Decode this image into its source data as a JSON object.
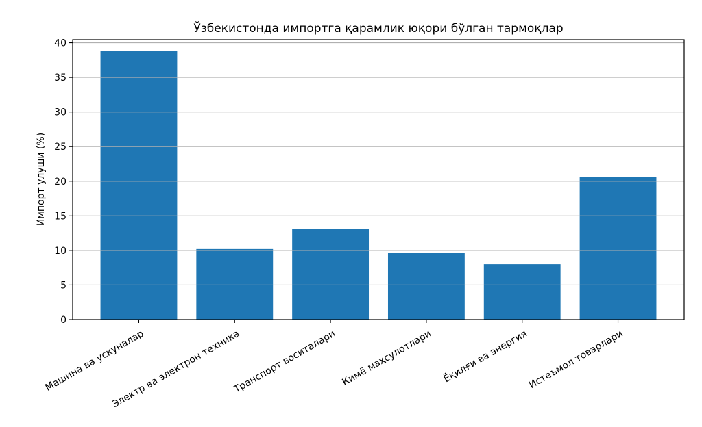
{
  "chart_data": {
    "type": "bar",
    "title": "Ўзбекистонда импортга қарамлик юқори бўлган тармоқлар",
    "xlabel": "",
    "ylabel": "Импорт улуши (%)",
    "categories": [
      "Машина ва ускуналар",
      "Электр ва электрон техника",
      "Транспорт воситалари",
      "Кимё маҳсулотлари",
      "Ёқилғи ва энергия",
      "Истеъмол товарлари"
    ],
    "values": [
      38.8,
      10.2,
      13.1,
      9.6,
      8.0,
      20.6
    ],
    "yticks": [
      0,
      5,
      10,
      15,
      20,
      25,
      30,
      35,
      40
    ],
    "ylim": [
      0,
      40.45
    ],
    "bar_color": "#1f77b4",
    "grid": "horizontal-only",
    "grid_above_bars": true,
    "grid_color": "#b0b0b0",
    "spine_color": "#000000",
    "tick_color": "#000000",
    "background_color": "#ffffff",
    "x_tick_label_rotation_deg": 30,
    "legend": "none"
  }
}
